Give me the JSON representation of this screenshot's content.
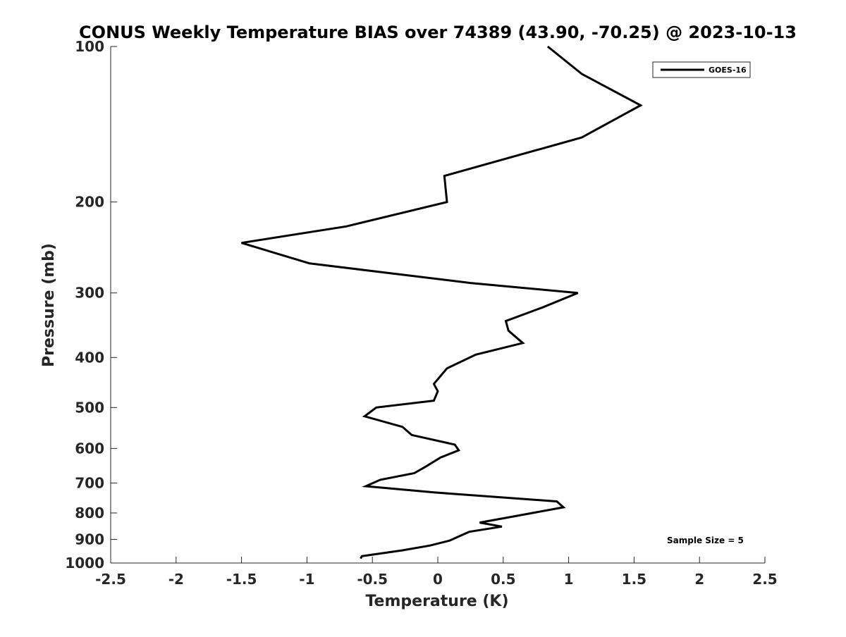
{
  "chart_data": {
    "type": "line",
    "title": "CONUS Weekly Temperature BIAS over 74389 (43.90, -70.25) @ 2023-10-13",
    "xlabel": "Temperature (K)",
    "ylabel": "Pressure (mb)",
    "xlim": [
      -2.5,
      2.5
    ],
    "ylim": [
      1000,
      100
    ],
    "y_scale": "log",
    "y_reversed": true,
    "grid": false,
    "legend_position": "top-right",
    "x_ticks": [
      "-2.5",
      "-2",
      "-1.5",
      "-1",
      "-0.5",
      "0",
      "0.5",
      "1",
      "1.5",
      "2",
      "2.5"
    ],
    "y_ticks": [
      "100",
      "200",
      "300",
      "400",
      "500",
      "600",
      "700",
      "800",
      "900",
      "1000"
    ],
    "annotation": "Sample Size = 5",
    "series": [
      {
        "name": "GOES-16",
        "color": "#000000",
        "x": [
          0.84,
          1.1,
          1.55,
          1.1,
          0.05,
          0.07,
          -0.7,
          -1.5,
          -0.98,
          0.25,
          1.07,
          0.8,
          0.52,
          0.54,
          0.65,
          0.29,
          0.07,
          -0.03,
          0.0,
          -0.03,
          -0.47,
          -0.56,
          -0.27,
          -0.2,
          0.13,
          0.16,
          0.02,
          -0.09,
          -0.18,
          -0.44,
          -0.55,
          -0.03,
          0.91,
          0.96,
          0.61,
          0.32,
          0.49,
          0.24,
          0.14,
          0.09,
          -0.06,
          -0.27,
          -0.58,
          -0.59
        ],
        "y": [
          100,
          113,
          130,
          150,
          178,
          200,
          223,
          240,
          263,
          287,
          300,
          320,
          340,
          355,
          375,
          395,
          420,
          450,
          465,
          485,
          500,
          520,
          545,
          565,
          590,
          605,
          625,
          650,
          670,
          690,
          710,
          730,
          760,
          780,
          810,
          835,
          850,
          870,
          893,
          905,
          925,
          945,
          970,
          980
        ]
      }
    ]
  }
}
